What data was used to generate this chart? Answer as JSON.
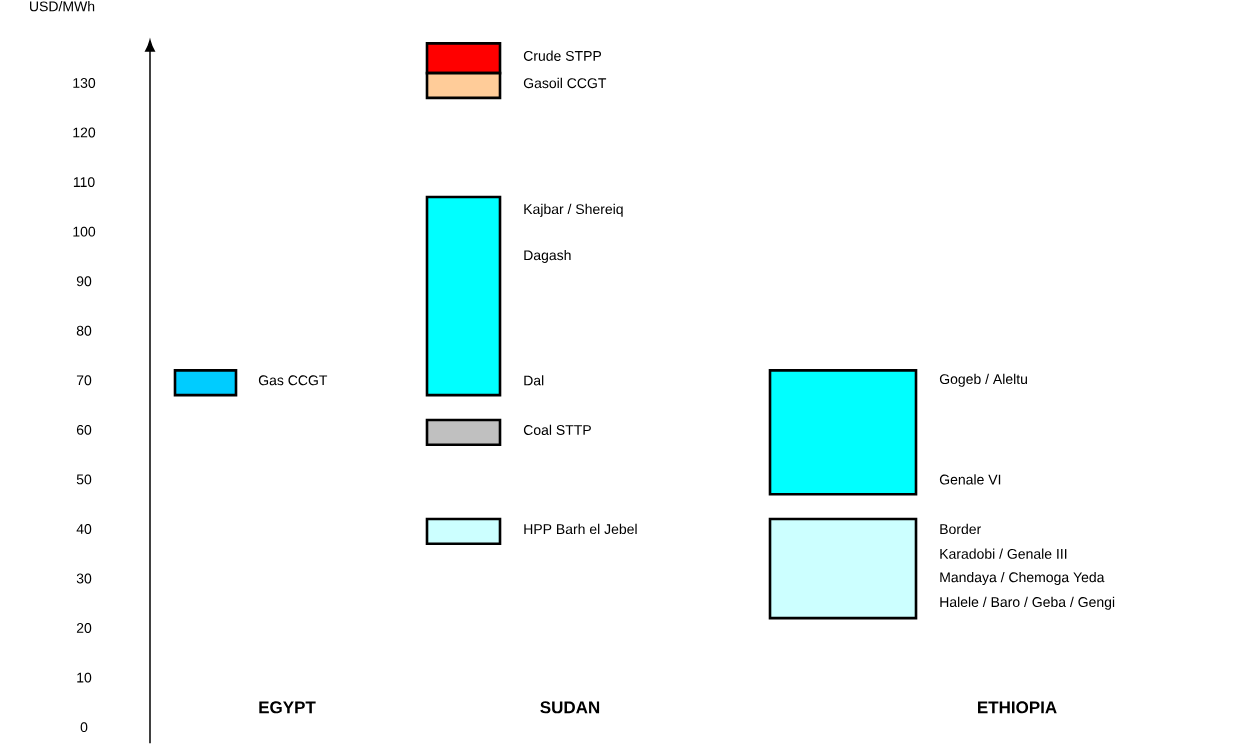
{
  "chart_data": {
    "type": "bar",
    "categories": [
      "EGYPT",
      "SUDAN",
      "ETHIOPIA"
    ],
    "ylim": [
      -3.4,
      139
    ],
    "yticks": [
      0,
      10,
      20,
      30,
      40,
      50,
      60,
      70,
      80,
      90,
      100,
      110,
      120,
      130
    ],
    "grid": false,
    "series": [
      {
        "color": "#00ccff",
        "base": [
          67,
          null,
          null
        ],
        "values": [
          5,
          null,
          null
        ]
      },
      {
        "color": "#ff0000",
        "base": [
          null,
          132,
          null
        ],
        "values": [
          null,
          6,
          null
        ]
      },
      {
        "color": "#ffcc99",
        "base": [
          null,
          127,
          null
        ],
        "values": [
          null,
          5,
          null
        ]
      },
      {
        "color": "#00ffff",
        "base": [
          null,
          67,
          null
        ],
        "values": [
          null,
          40,
          null
        ]
      },
      {
        "color": "#c0c0c0",
        "base": [
          null,
          57,
          null
        ],
        "values": [
          null,
          5,
          null
        ]
      },
      {
        "color": "#ccffff",
        "base": [
          null,
          37,
          null
        ],
        "values": [
          null,
          5,
          null
        ]
      },
      {
        "color": "#00ffff",
        "base": [
          null,
          null,
          47
        ],
        "values": [
          null,
          null,
          25
        ]
      },
      {
        "color": "#ccffff",
        "base": [
          null,
          null,
          22
        ],
        "values": [
          null,
          null,
          20
        ]
      }
    ],
    "annotations": [
      "USD/MWh",
      "Gas CCGT",
      "Crude STPP",
      "Gasoil CCGT",
      "Kajbar / Shereiq",
      "Dagash",
      "Dal",
      "Coal STTP",
      "HPP Barh el Jebel",
      "Gogeb / Aleltu",
      "Genale VI",
      "Border",
      "Karadobi / Genale III",
      "Mandaya / Chemoga Yeda",
      "Halele / Baro / Geba / Gengi"
    ]
  }
}
